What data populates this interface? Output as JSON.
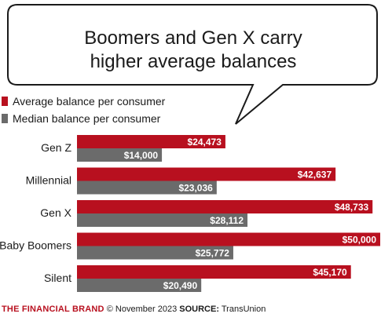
{
  "title_lines": [
    "Boomers and Gen X carry",
    "higher average balances"
  ],
  "legend": {
    "average": "Average balance per consumer",
    "median": "Median balance per consumer"
  },
  "colors": {
    "average": "#b8101f",
    "median": "#6b6b6b",
    "bubble_border": "#1a1a1a",
    "brand": "#b8101f"
  },
  "chart_data": {
    "type": "bar",
    "orientation": "horizontal",
    "categories": [
      "Gen Z",
      "Millennial",
      "Gen X",
      "Baby Boomers",
      "Silent"
    ],
    "series": [
      {
        "name": "Average balance per consumer",
        "values": [
          24473,
          42637,
          48733,
          50000,
          45170
        ],
        "labels": [
          "$24,473",
          "$42,637",
          "$48,733",
          "$50,000",
          "$45,170"
        ]
      },
      {
        "name": "Median balance per consumer",
        "values": [
          14000,
          23036,
          28112,
          25772,
          20490
        ],
        "labels": [
          "$14,000",
          "$23,036",
          "$28,112",
          "$25,772",
          "$20,490"
        ]
      }
    ],
    "xlim": [
      0,
      50000
    ],
    "grid": false,
    "legend_position": "top-left"
  },
  "footer": {
    "brand": "THE FINANCIAL BRAND",
    "date": "© November 2023",
    "source_label": "SOURCE:",
    "source": "TransUnion"
  }
}
